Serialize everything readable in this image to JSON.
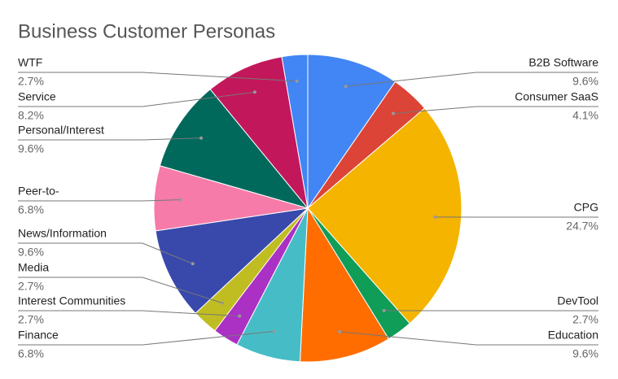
{
  "chart_data": {
    "type": "pie",
    "title": "Business Customer Personas",
    "categories": [
      "B2B Software",
      "Consumer SaaS",
      "CPG",
      "DevTool",
      "Education",
      "Finance",
      "Interest Communities",
      "Media",
      "News/Information",
      "Peer-to-",
      "Personal/Interest",
      "Service",
      "WTF"
    ],
    "values": [
      9.6,
      4.1,
      24.7,
      2.7,
      9.6,
      6.8,
      2.7,
      2.7,
      9.6,
      6.8,
      9.6,
      8.2,
      2.7
    ],
    "value_labels": [
      "9.6%",
      "4.1%",
      "24.7%",
      "2.7%",
      "9.6%",
      "6.8%",
      "2.7%",
      "2.7%",
      "9.6%",
      "6.8%",
      "9.6%",
      "8.2%",
      "2.7%"
    ],
    "colors": [
      "#4285f4",
      "#db4437",
      "#f4b400",
      "#0f9d58",
      "#ff6d00",
      "#46bdc6",
      "#ab30c4",
      "#c0bd22",
      "#3949ab",
      "#f67ba9",
      "#00695c",
      "#c2185b",
      "#4285f4"
    ]
  }
}
